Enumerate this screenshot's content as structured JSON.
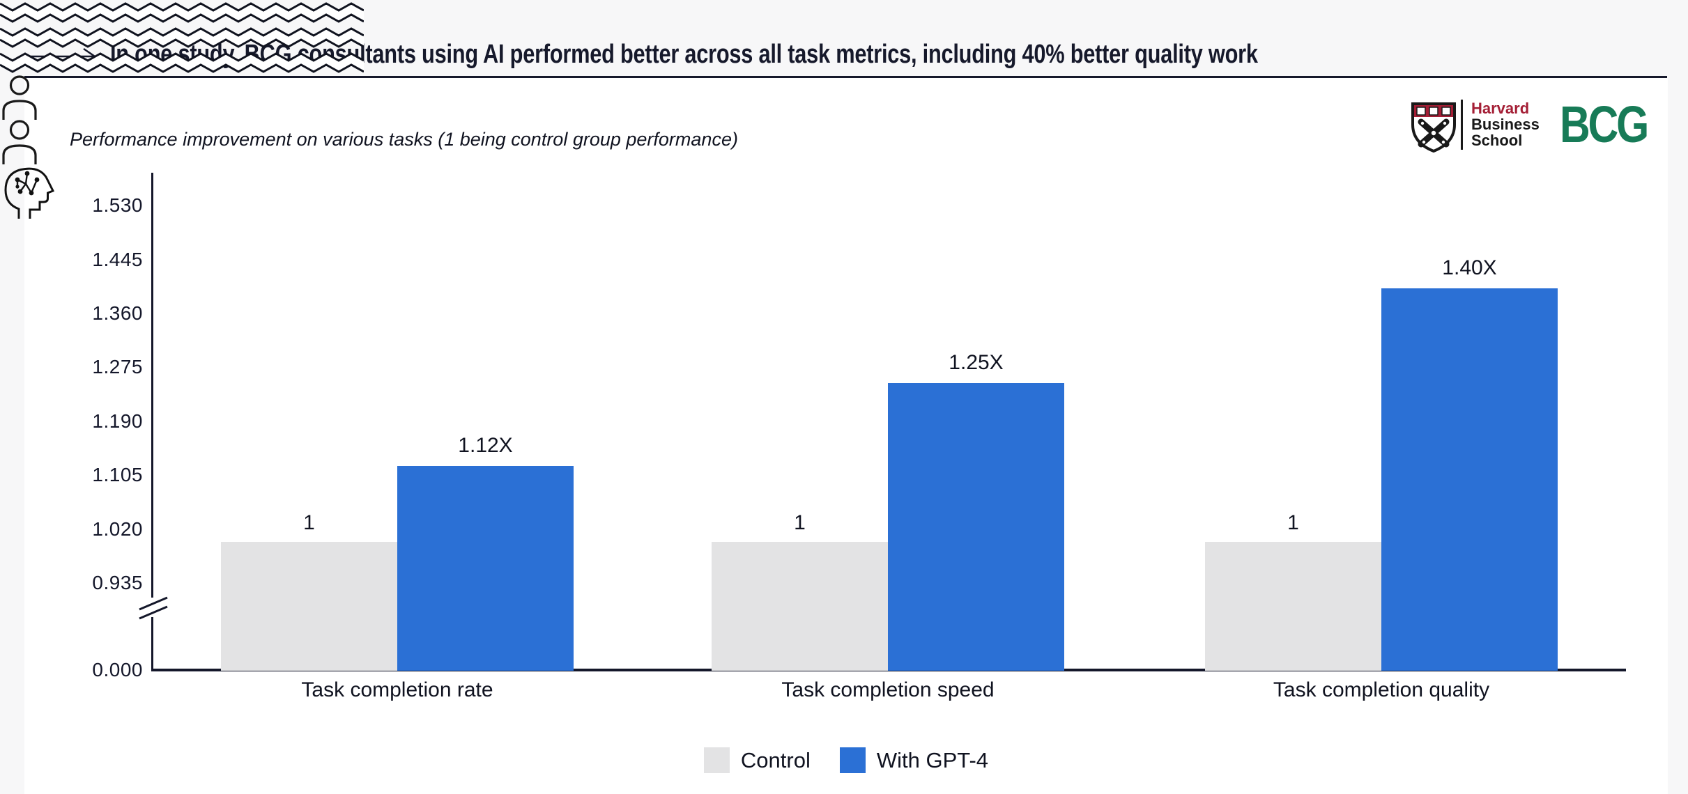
{
  "page": {
    "title": "In one study, BCG consultants using AI performed better across all task metrics, including 40% better quality work"
  },
  "logos": {
    "hbs": {
      "line1": "Harvard",
      "line2": "Business",
      "line3": "School"
    },
    "bcg": "BCG"
  },
  "colors": {
    "page_bg": "#f7f7f8",
    "card_bg": "#ffffff",
    "ink": "#16192b",
    "control": "#e3e3e4",
    "gpt4": "#2b70d5",
    "harvard_crimson": "#a41e35",
    "bcg_green": "#177b57"
  },
  "icons": {
    "title_arrow": "long-right-arrow",
    "group1_control": "person-icon",
    "group1_gpt4": [
      "person-icon",
      "ai-head-circuit-icon"
    ]
  },
  "chart_data": {
    "type": "bar",
    "title": "Performance improvement on various tasks (1 being control group performance)",
    "categories": [
      "Task completion rate",
      "Task completion speed",
      "Task completion quality"
    ],
    "series": [
      {
        "name": "Control",
        "values": [
          1.0,
          1.0,
          1.0
        ],
        "labels": [
          "1",
          "1",
          "1"
        ],
        "color": "#e3e3e4"
      },
      {
        "name": "With GPT-4",
        "values": [
          1.12,
          1.25,
          1.4
        ],
        "labels": [
          "1.12X",
          "1.25X",
          "1.40X"
        ],
        "color": "#2b70d5"
      }
    ],
    "yticks": [
      1.53,
      1.445,
      1.36,
      1.275,
      1.19,
      1.105,
      1.02,
      0.935
    ],
    "ytick_labels": [
      "1.530",
      "1.445",
      "1.360",
      "1.275",
      "1.190",
      "1.105",
      "1.020",
      "0.935"
    ],
    "zero_label": "0.000",
    "axis_break": true,
    "ylim_top_section": [
      0.935,
      1.575
    ],
    "grid": false,
    "legend": [
      "Control",
      "With GPT-4"
    ],
    "legend_position": "bottom"
  }
}
